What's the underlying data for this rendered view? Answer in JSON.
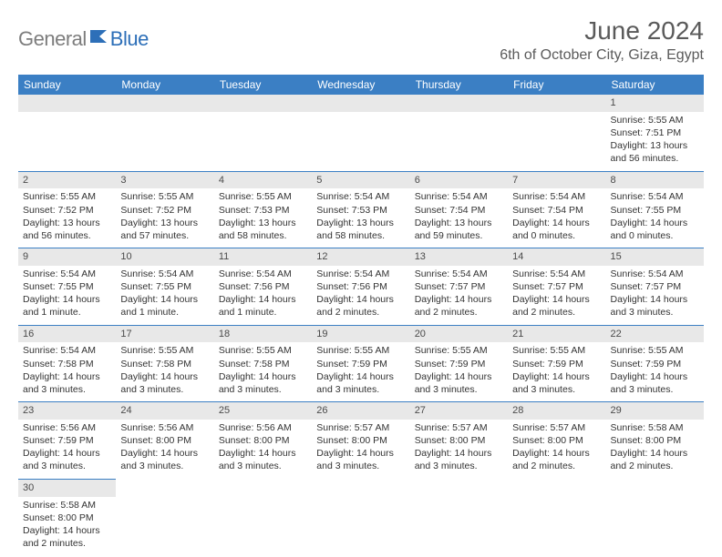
{
  "logo": {
    "gray": "General",
    "blue": "Blue"
  },
  "title": "June 2024",
  "location": "6th of October City, Giza, Egypt",
  "weekdays": [
    "Sunday",
    "Monday",
    "Tuesday",
    "Wednesday",
    "Thursday",
    "Friday",
    "Saturday"
  ],
  "colors": {
    "header_bg": "#3b7fc4",
    "header_text": "#ffffff",
    "daynum_bg": "#e8e8e8",
    "border": "#3b7fc4",
    "title_color": "#5a5a5a",
    "logo_gray": "#7d7d7d",
    "logo_blue": "#2d6fb8"
  },
  "weeks": [
    [
      {
        "n": "",
        "sr": "",
        "ss": "",
        "dl": ""
      },
      {
        "n": "",
        "sr": "",
        "ss": "",
        "dl": ""
      },
      {
        "n": "",
        "sr": "",
        "ss": "",
        "dl": ""
      },
      {
        "n": "",
        "sr": "",
        "ss": "",
        "dl": ""
      },
      {
        "n": "",
        "sr": "",
        "ss": "",
        "dl": ""
      },
      {
        "n": "",
        "sr": "",
        "ss": "",
        "dl": ""
      },
      {
        "n": "1",
        "sr": "Sunrise: 5:55 AM",
        "ss": "Sunset: 7:51 PM",
        "dl": "Daylight: 13 hours and 56 minutes."
      }
    ],
    [
      {
        "n": "2",
        "sr": "Sunrise: 5:55 AM",
        "ss": "Sunset: 7:52 PM",
        "dl": "Daylight: 13 hours and 56 minutes."
      },
      {
        "n": "3",
        "sr": "Sunrise: 5:55 AM",
        "ss": "Sunset: 7:52 PM",
        "dl": "Daylight: 13 hours and 57 minutes."
      },
      {
        "n": "4",
        "sr": "Sunrise: 5:55 AM",
        "ss": "Sunset: 7:53 PM",
        "dl": "Daylight: 13 hours and 58 minutes."
      },
      {
        "n": "5",
        "sr": "Sunrise: 5:54 AM",
        "ss": "Sunset: 7:53 PM",
        "dl": "Daylight: 13 hours and 58 minutes."
      },
      {
        "n": "6",
        "sr": "Sunrise: 5:54 AM",
        "ss": "Sunset: 7:54 PM",
        "dl": "Daylight: 13 hours and 59 minutes."
      },
      {
        "n": "7",
        "sr": "Sunrise: 5:54 AM",
        "ss": "Sunset: 7:54 PM",
        "dl": "Daylight: 14 hours and 0 minutes."
      },
      {
        "n": "8",
        "sr": "Sunrise: 5:54 AM",
        "ss": "Sunset: 7:55 PM",
        "dl": "Daylight: 14 hours and 0 minutes."
      }
    ],
    [
      {
        "n": "9",
        "sr": "Sunrise: 5:54 AM",
        "ss": "Sunset: 7:55 PM",
        "dl": "Daylight: 14 hours and 1 minute."
      },
      {
        "n": "10",
        "sr": "Sunrise: 5:54 AM",
        "ss": "Sunset: 7:55 PM",
        "dl": "Daylight: 14 hours and 1 minute."
      },
      {
        "n": "11",
        "sr": "Sunrise: 5:54 AM",
        "ss": "Sunset: 7:56 PM",
        "dl": "Daylight: 14 hours and 1 minute."
      },
      {
        "n": "12",
        "sr": "Sunrise: 5:54 AM",
        "ss": "Sunset: 7:56 PM",
        "dl": "Daylight: 14 hours and 2 minutes."
      },
      {
        "n": "13",
        "sr": "Sunrise: 5:54 AM",
        "ss": "Sunset: 7:57 PM",
        "dl": "Daylight: 14 hours and 2 minutes."
      },
      {
        "n": "14",
        "sr": "Sunrise: 5:54 AM",
        "ss": "Sunset: 7:57 PM",
        "dl": "Daylight: 14 hours and 2 minutes."
      },
      {
        "n": "15",
        "sr": "Sunrise: 5:54 AM",
        "ss": "Sunset: 7:57 PM",
        "dl": "Daylight: 14 hours and 3 minutes."
      }
    ],
    [
      {
        "n": "16",
        "sr": "Sunrise: 5:54 AM",
        "ss": "Sunset: 7:58 PM",
        "dl": "Daylight: 14 hours and 3 minutes."
      },
      {
        "n": "17",
        "sr": "Sunrise: 5:55 AM",
        "ss": "Sunset: 7:58 PM",
        "dl": "Daylight: 14 hours and 3 minutes."
      },
      {
        "n": "18",
        "sr": "Sunrise: 5:55 AM",
        "ss": "Sunset: 7:58 PM",
        "dl": "Daylight: 14 hours and 3 minutes."
      },
      {
        "n": "19",
        "sr": "Sunrise: 5:55 AM",
        "ss": "Sunset: 7:59 PM",
        "dl": "Daylight: 14 hours and 3 minutes."
      },
      {
        "n": "20",
        "sr": "Sunrise: 5:55 AM",
        "ss": "Sunset: 7:59 PM",
        "dl": "Daylight: 14 hours and 3 minutes."
      },
      {
        "n": "21",
        "sr": "Sunrise: 5:55 AM",
        "ss": "Sunset: 7:59 PM",
        "dl": "Daylight: 14 hours and 3 minutes."
      },
      {
        "n": "22",
        "sr": "Sunrise: 5:55 AM",
        "ss": "Sunset: 7:59 PM",
        "dl": "Daylight: 14 hours and 3 minutes."
      }
    ],
    [
      {
        "n": "23",
        "sr": "Sunrise: 5:56 AM",
        "ss": "Sunset: 7:59 PM",
        "dl": "Daylight: 14 hours and 3 minutes."
      },
      {
        "n": "24",
        "sr": "Sunrise: 5:56 AM",
        "ss": "Sunset: 8:00 PM",
        "dl": "Daylight: 14 hours and 3 minutes."
      },
      {
        "n": "25",
        "sr": "Sunrise: 5:56 AM",
        "ss": "Sunset: 8:00 PM",
        "dl": "Daylight: 14 hours and 3 minutes."
      },
      {
        "n": "26",
        "sr": "Sunrise: 5:57 AM",
        "ss": "Sunset: 8:00 PM",
        "dl": "Daylight: 14 hours and 3 minutes."
      },
      {
        "n": "27",
        "sr": "Sunrise: 5:57 AM",
        "ss": "Sunset: 8:00 PM",
        "dl": "Daylight: 14 hours and 3 minutes."
      },
      {
        "n": "28",
        "sr": "Sunrise: 5:57 AM",
        "ss": "Sunset: 8:00 PM",
        "dl": "Daylight: 14 hours and 2 minutes."
      },
      {
        "n": "29",
        "sr": "Sunrise: 5:58 AM",
        "ss": "Sunset: 8:00 PM",
        "dl": "Daylight: 14 hours and 2 minutes."
      }
    ],
    [
      {
        "n": "30",
        "sr": "Sunrise: 5:58 AM",
        "ss": "Sunset: 8:00 PM",
        "dl": "Daylight: 14 hours and 2 minutes."
      },
      {
        "n": "",
        "sr": "",
        "ss": "",
        "dl": ""
      },
      {
        "n": "",
        "sr": "",
        "ss": "",
        "dl": ""
      },
      {
        "n": "",
        "sr": "",
        "ss": "",
        "dl": ""
      },
      {
        "n": "",
        "sr": "",
        "ss": "",
        "dl": ""
      },
      {
        "n": "",
        "sr": "",
        "ss": "",
        "dl": ""
      },
      {
        "n": "",
        "sr": "",
        "ss": "",
        "dl": ""
      }
    ]
  ]
}
